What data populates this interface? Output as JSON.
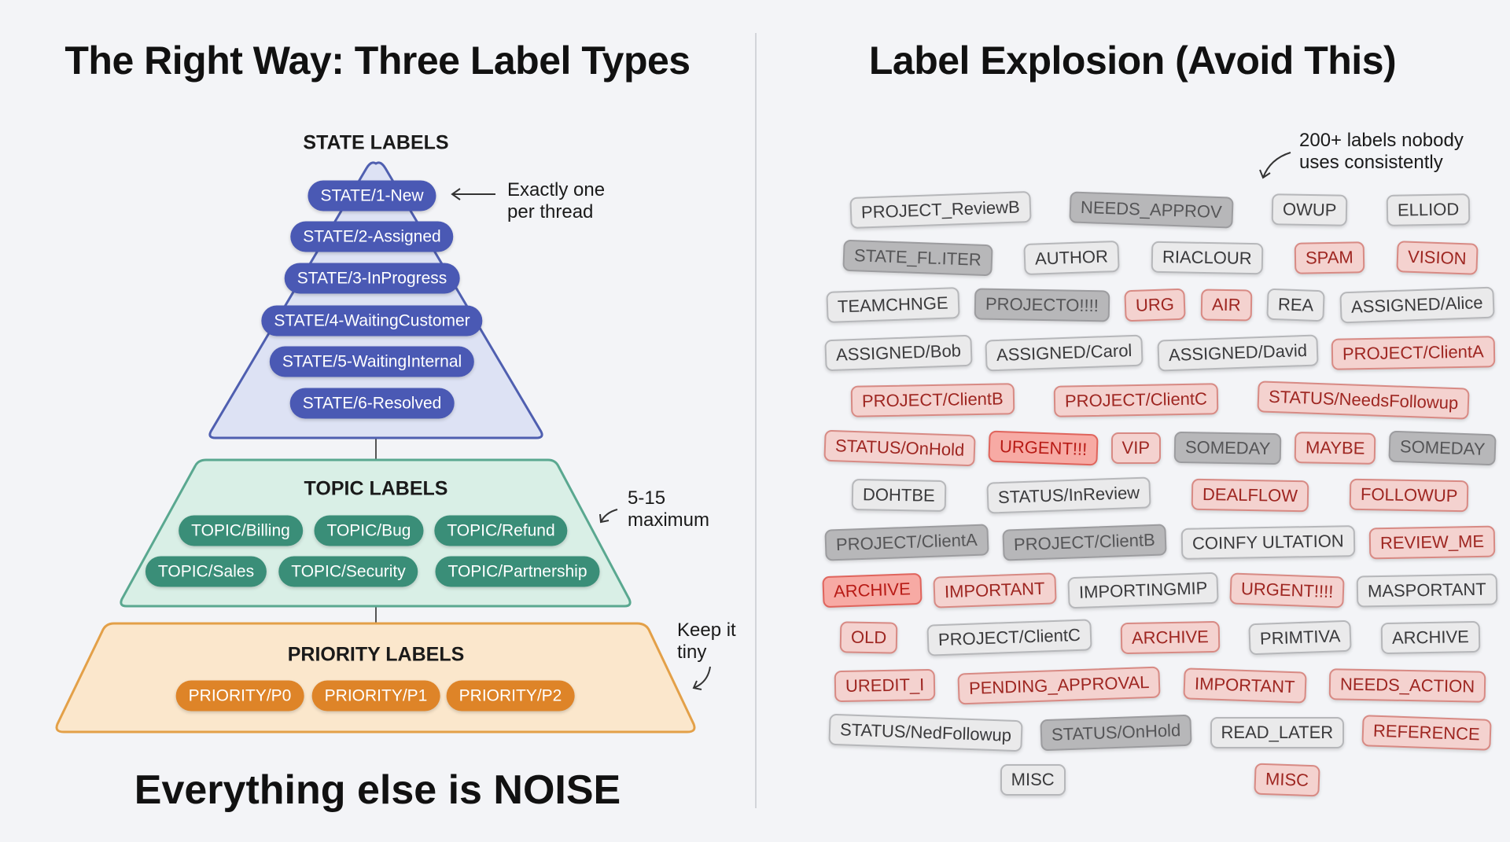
{
  "left": {
    "title": "The Right Way: Three Label Types",
    "state": {
      "title": "STATE LABELS",
      "labels": [
        "STATE/1-New",
        "STATE/2-Assigned",
        "STATE/3-InProgress",
        "STATE/4-WaitingCustomer",
        "STATE/5-WaitingInternal",
        "STATE/6-Resolved"
      ],
      "note": [
        "Exactly one",
        "per thread"
      ],
      "color": "#4a59b4"
    },
    "topic": {
      "title": "TOPIC LABELS",
      "labels": [
        "TOPIC/Billing",
        "TOPIC/Bug",
        "TOPIC/Refund",
        "TOPIC/Sales",
        "TOPIC/Security",
        "TOPIC/Partnership"
      ],
      "note": [
        "5-15",
        "maximum"
      ],
      "color": "#3a8e78"
    },
    "priority": {
      "title": "PRIORITY LABELS",
      "labels": [
        "PRIORITY/P0",
        "PRIORITY/P1",
        "PRIORITY/P2"
      ],
      "note": [
        "Keep it",
        "tiny"
      ],
      "color": "#de8428"
    },
    "footer": "Everything else is NOISE"
  },
  "right": {
    "title": "Label Explosion (Avoid This)",
    "note": [
      "200+ labels nobody",
      "uses consistently"
    ],
    "tags": [
      "PROJECT_ReviewB",
      "NEEDS_APPROV",
      "OWUP",
      "ELLIOD",
      "STATE_FL.ITER",
      "AUTHOR",
      "RIACLOUR",
      "SPAM",
      "VISION",
      "TEAMCHNGE",
      "PROJECTO!!!!",
      "URG",
      "AIR",
      "REA",
      "ASSIGNED/Alice",
      "ASSIGNED/Bob",
      "ASSIGNED/Carol",
      "ASSIGNED/David",
      "PROJECT/ClientA",
      "PROJECT/ClientB",
      "PROJECT/ClientC",
      "STATUS/NeedsFollowup",
      "STATUS/OnHold",
      "URGENT!!!",
      "VIP",
      "SOMEDAY",
      "MAYBE",
      "SOMEDAY",
      "DOHTBE",
      "STATUS/InReview",
      "DEALFLOW",
      "FOLLOWUP",
      "PROJECT/ClientA",
      "PROJECT/ClientB",
      "COINFY ULTATION",
      "REVIEW_ME",
      "ARCHIVE",
      "IMPORTANT",
      "IMPORTINGMIP",
      "URGENT!!!!",
      "MASPORTANT",
      "OLD",
      "PROJECT/ClientC",
      "ARCHIVE",
      "PRIMTIVA",
      "ARCHIVE",
      "UREDIT_I",
      "PENDING_APPROVAL",
      "IMPORTANT",
      "NEEDS_ACTION",
      "STATUS/NedFollowup",
      "STATUS/OnHold",
      "READ_LATER",
      "REFERENCE",
      "MISC",
      "MISC"
    ]
  }
}
